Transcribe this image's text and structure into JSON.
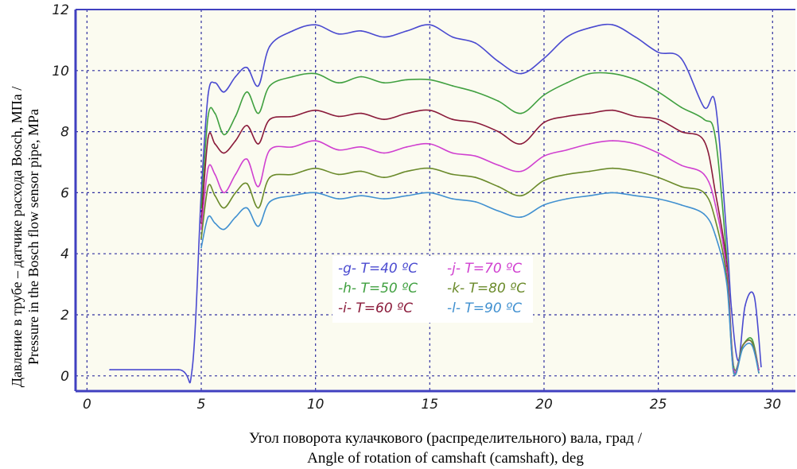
{
  "chart_data": {
    "type": "line",
    "ylabel_lines": [
      "Давление в  трубе – датчике расхода Bosch, МПа /",
      "Pressure in the Bosch flow sensor pipe, MPa"
    ],
    "xlabel_lines": [
      "Угол поворота кулачкового (распределительного) вала, град /",
      "Angle of rotation of camshaft (camshaft), deg"
    ],
    "xlim": [
      -0.5,
      31
    ],
    "ylim": [
      -0.5,
      12
    ],
    "xticks": [
      0,
      5,
      10,
      15,
      20,
      25,
      30
    ],
    "xtick_labels": [
      "0",
      "5",
      "10",
      "15",
      "20",
      "25",
      "30"
    ],
    "yticks": [
      0,
      2,
      4,
      6,
      8,
      10,
      12
    ],
    "ytick_labels": [
      "0",
      "2",
      "4",
      "6",
      "8",
      "10",
      "12"
    ],
    "grid": true,
    "background": "#fbfbf0",
    "axis_color": "#4040c0",
    "grid_color": "#3030a0",
    "series": [
      {
        "name": "T=40 ºC",
        "tag": "-g-",
        "color": "#4a4ad0",
        "x": [
          1,
          4,
          4.6,
          5,
          5.3,
          5.6,
          6,
          6.5,
          7,
          7.5,
          8,
          9,
          10,
          11,
          12,
          13,
          14,
          15,
          16,
          17,
          18,
          19,
          20,
          21,
          22,
          23,
          24,
          25,
          26,
          27,
          27.5,
          28,
          28.2,
          28.5,
          28.8,
          29.2,
          29.5
        ],
        "y": [
          0.2,
          0.2,
          0.2,
          6,
          9.2,
          9.6,
          9.3,
          9.8,
          10.1,
          9.5,
          10.8,
          11.3,
          11.5,
          11.2,
          11.3,
          11.1,
          11.3,
          11.5,
          11.1,
          10.9,
          10.3,
          9.9,
          10.4,
          11.1,
          11.4,
          11.5,
          11.1,
          10.6,
          10.4,
          8.8,
          8.9,
          4.5,
          2.2,
          0.5,
          2.3,
          2.6,
          0.3
        ]
      },
      {
        "name": "T=50 ºC",
        "tag": "-h-",
        "color": "#40a040",
        "x": [
          5,
          5.3,
          5.6,
          6,
          6.5,
          7,
          7.5,
          8,
          9,
          10,
          11,
          12,
          13,
          14,
          15,
          16,
          17,
          18,
          19,
          20,
          21,
          22,
          23,
          24,
          25,
          26,
          27,
          27.5,
          28,
          28.3,
          28.7,
          29.1,
          29.4
        ],
        "y": [
          5.5,
          8.5,
          8.6,
          7.9,
          8.5,
          9.3,
          8.6,
          9.5,
          9.8,
          9.9,
          9.6,
          9.8,
          9.6,
          9.7,
          9.7,
          9.5,
          9.3,
          9.0,
          8.6,
          9.2,
          9.6,
          9.9,
          9.9,
          9.7,
          9.3,
          8.8,
          8.4,
          7.8,
          3.8,
          0.3,
          1.0,
          1.2,
          0.2
        ]
      },
      {
        "name": "T=60 ºC",
        "tag": "-i-",
        "color": "#8a1a3a",
        "x": [
          5,
          5.3,
          5.6,
          6,
          6.5,
          7,
          7.5,
          8,
          9,
          10,
          11,
          12,
          13,
          14,
          15,
          16,
          17,
          18,
          19,
          20,
          21,
          22,
          23,
          24,
          25,
          26,
          27,
          27.5,
          28,
          28.3,
          28.7,
          29.1,
          29.4
        ],
        "y": [
          5.0,
          7.8,
          7.6,
          7.3,
          7.7,
          8.2,
          7.6,
          8.4,
          8.5,
          8.7,
          8.5,
          8.6,
          8.4,
          8.6,
          8.7,
          8.4,
          8.3,
          8.0,
          7.6,
          8.3,
          8.5,
          8.6,
          8.7,
          8.5,
          8.4,
          8.0,
          7.7,
          6.0,
          3.6,
          0.2,
          1.0,
          1.1,
          0.2
        ]
      },
      {
        "name": "T=70 ºC",
        "tag": "-j-",
        "color": "#d040d0",
        "x": [
          5,
          5.3,
          5.6,
          6,
          6.5,
          7,
          7.5,
          8,
          9,
          10,
          11,
          12,
          13,
          14,
          15,
          16,
          17,
          18,
          19,
          20,
          21,
          22,
          23,
          24,
          25,
          26,
          27,
          27.5,
          28,
          28.3,
          28.7,
          29.1,
          29.4
        ],
        "y": [
          4.8,
          6.8,
          6.6,
          6.0,
          6.6,
          7.1,
          6.2,
          7.4,
          7.5,
          7.7,
          7.4,
          7.5,
          7.3,
          7.5,
          7.6,
          7.3,
          7.2,
          6.9,
          6.7,
          7.2,
          7.4,
          7.6,
          7.7,
          7.6,
          7.3,
          6.9,
          6.6,
          5.6,
          3.4,
          0.2,
          1.0,
          1.1,
          0.2
        ]
      },
      {
        "name": "T=80 ºC",
        "tag": "-k-",
        "color": "#6a8a2a",
        "x": [
          5,
          5.3,
          5.6,
          6,
          6.5,
          7,
          7.5,
          8,
          9,
          10,
          11,
          12,
          13,
          14,
          15,
          16,
          17,
          18,
          19,
          20,
          21,
          22,
          23,
          24,
          25,
          26,
          27,
          27.5,
          28,
          28.3,
          28.7,
          29.1,
          29.4
        ],
        "y": [
          4.5,
          6.2,
          5.9,
          5.5,
          6.0,
          6.3,
          5.5,
          6.5,
          6.6,
          6.8,
          6.6,
          6.7,
          6.5,
          6.7,
          6.8,
          6.6,
          6.5,
          6.2,
          5.9,
          6.4,
          6.6,
          6.7,
          6.8,
          6.7,
          6.5,
          6.2,
          6.0,
          5.1,
          3.2,
          0.1,
          1.0,
          1.1,
          0.1
        ]
      },
      {
        "name": "T=90 ºC",
        "tag": "-l-",
        "color": "#4090d0",
        "x": [
          5,
          5.3,
          5.6,
          6,
          6.5,
          7,
          7.5,
          8,
          9,
          10,
          11,
          12,
          13,
          14,
          15,
          16,
          17,
          18,
          19,
          20,
          21,
          22,
          23,
          24,
          25,
          26,
          27,
          27.5,
          28,
          28.3,
          28.7,
          29.1,
          29.4
        ],
        "y": [
          4.2,
          5.2,
          5.0,
          4.8,
          5.2,
          5.5,
          4.9,
          5.7,
          5.9,
          6.0,
          5.8,
          5.9,
          5.8,
          5.9,
          6.0,
          5.8,
          5.7,
          5.4,
          5.2,
          5.6,
          5.8,
          5.9,
          6.0,
          5.9,
          5.8,
          5.6,
          5.3,
          4.6,
          3.0,
          0.1,
          0.9,
          1.0,
          0.1
        ]
      }
    ]
  }
}
